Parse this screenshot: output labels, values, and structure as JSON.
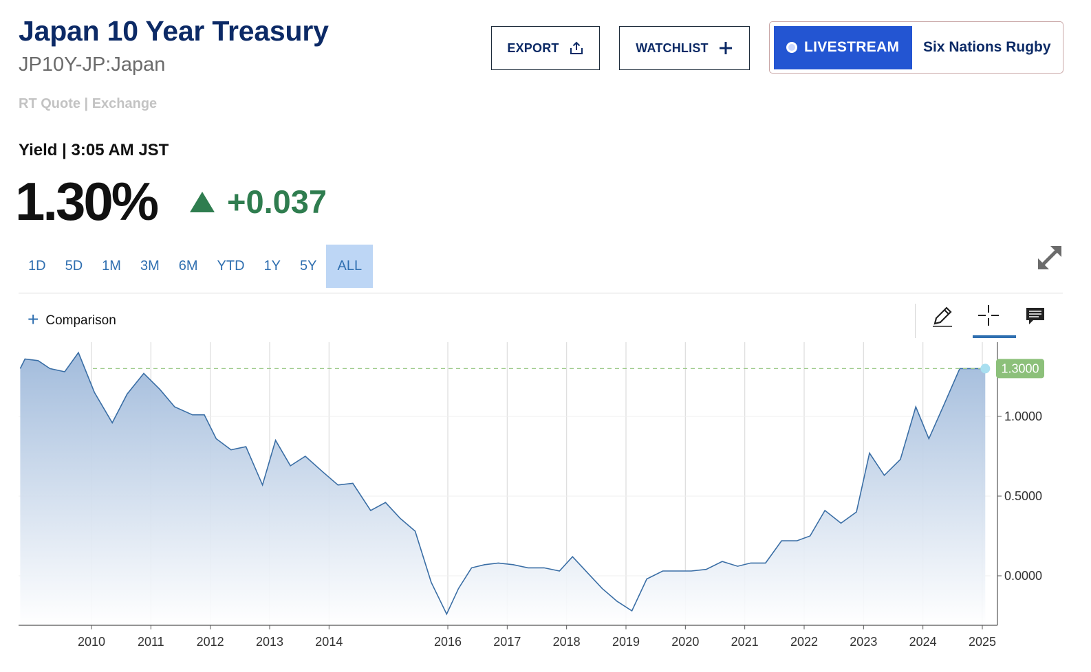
{
  "header": {
    "title": "Japan 10 Year Treasury",
    "symbol": "JP10Y-JP:Japan",
    "quote_source": "RT Quote | Exchange",
    "yield_label": "Yield | 3:05 AM JST",
    "price": "1.30%",
    "change": "+0.037"
  },
  "toolbar": {
    "export_label": "EXPORT",
    "watchlist_label": "WATCHLIST",
    "livestream_label": "LIVESTREAM",
    "livestream_title": "Six Nations Rugby"
  },
  "ranges": {
    "items": [
      "1D",
      "5D",
      "1M",
      "3M",
      "6M",
      "YTD",
      "1Y",
      "5Y",
      "ALL"
    ],
    "active": "ALL"
  },
  "comparison_label": "Comparison",
  "colors": {
    "line": "#3a6ea5",
    "area_top": "#9db8da",
    "up": "#2f7d4f",
    "last_badge": "#8cc07a",
    "title": "#0c2a66"
  },
  "chart_data": {
    "type": "area",
    "title": "",
    "xlabel": "",
    "ylabel": "",
    "x_ticks": [
      "2010",
      "2011",
      "2012",
      "2013",
      "2014",
      "2016",
      "2017",
      "2018",
      "2019",
      "2020",
      "2021",
      "2022",
      "2023",
      "2024",
      "2025"
    ],
    "y_ticks": [
      "1.0000",
      "0.5000",
      "0.0000"
    ],
    "ylim": [
      -0.3,
      1.45
    ],
    "xlim": [
      2008.8,
      2025.15
    ],
    "last_value_label": "1.3000",
    "last_value": 1.3,
    "grid": "vertical",
    "series": [
      {
        "x": [
          2008.8,
          2008.88,
          2009.1,
          2009.3,
          2009.55,
          2009.78,
          2010.05,
          2010.35,
          2010.6,
          2010.88,
          2011.15,
          2011.4,
          2011.7,
          2011.9,
          2012.1,
          2012.35,
          2012.6,
          2012.88,
          2013.1,
          2013.35,
          2013.6,
          2013.9,
          2014.15,
          2014.4,
          2014.7,
          2014.95,
          2015.2,
          2015.45,
          2015.72,
          2015.98,
          2016.18,
          2016.4,
          2016.62,
          2016.85,
          2017.1,
          2017.35,
          2017.62,
          2017.88,
          2018.1,
          2018.35,
          2018.6,
          2018.85,
          2019.1,
          2019.35,
          2019.62,
          2019.88,
          2020.1,
          2020.35,
          2020.62,
          2020.88,
          2021.1,
          2021.35,
          2021.62,
          2021.88,
          2022.1,
          2022.35,
          2022.62,
          2022.88,
          2023.1,
          2023.35,
          2023.62,
          2023.88,
          2024.1,
          2024.35,
          2024.62,
          2024.88,
          2025.05
        ],
        "y": [
          1.3,
          1.36,
          1.35,
          1.3,
          1.28,
          1.4,
          1.15,
          0.96,
          1.14,
          1.27,
          1.17,
          1.06,
          1.01,
          1.01,
          0.86,
          0.79,
          0.81,
          0.57,
          0.85,
          0.69,
          0.75,
          0.65,
          0.57,
          0.58,
          0.41,
          0.46,
          0.36,
          0.28,
          -0.04,
          -0.24,
          -0.08,
          0.05,
          0.07,
          0.08,
          0.07,
          0.05,
          0.05,
          0.03,
          0.12,
          0.02,
          -0.08,
          -0.16,
          -0.22,
          -0.02,
          0.03,
          0.03,
          0.03,
          0.04,
          0.09,
          0.06,
          0.08,
          0.08,
          0.22,
          0.22,
          0.25,
          0.41,
          0.33,
          0.4,
          0.77,
          0.63,
          0.73,
          1.06,
          0.86,
          1.07,
          1.3,
          1.3,
          1.3
        ]
      }
    ]
  }
}
